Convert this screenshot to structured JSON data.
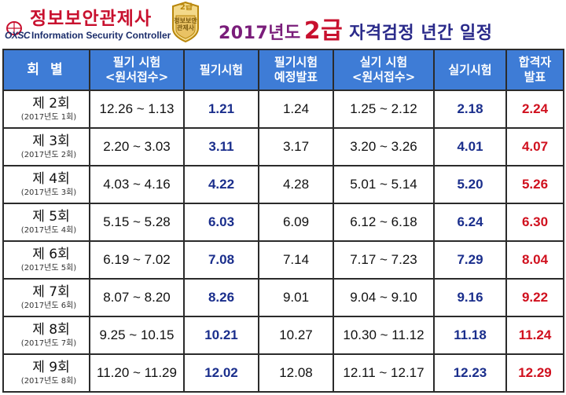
{
  "header": {
    "logo_title": "정보보안관제사",
    "logo_subtitle": "Information Security Controller",
    "logo_mark": "OXSC",
    "badge_grade": "2급",
    "badge_text": "정보보안관제사",
    "title_year": "2017년도",
    "title_grade": "2급",
    "title_rest": "자격검정 년간 일정"
  },
  "table": {
    "headers": {
      "round": "회 별",
      "written_apply_1": "필기 시험",
      "written_apply_2": "<원서접수>",
      "written_exam": "필기시험",
      "written_notice_1": "필기시험",
      "written_notice_2": "예정발표",
      "practical_apply_1": "실기 시험",
      "practical_apply_2": "<원서접수>",
      "practical_exam": "실기시험",
      "result_1": "합격자",
      "result_2": "발표"
    },
    "rows": [
      {
        "round": "제 2회",
        "round_sub": "(2017년도 1회)",
        "written_apply": "12.26 ~ 1.13",
        "written_exam": "1.21",
        "written_notice": "1.24",
        "practical_apply": "1.25 ~ 2.12",
        "practical_exam": "2.18",
        "result": "2.24"
      },
      {
        "round": "제 3회",
        "round_sub": "(2017년도 2회)",
        "written_apply": "2.20 ~ 3.03",
        "written_exam": "3.11",
        "written_notice": "3.17",
        "practical_apply": "3.20 ~ 3.26",
        "practical_exam": "4.01",
        "result": "4.07"
      },
      {
        "round": "제 4회",
        "round_sub": "(2017년도 3회)",
        "written_apply": "4.03 ~ 4.16",
        "written_exam": "4.22",
        "written_notice": "4.28",
        "practical_apply": "5.01 ~ 5.14",
        "practical_exam": "5.20",
        "result": "5.26"
      },
      {
        "round": "제 5회",
        "round_sub": "(2017년도 4회)",
        "written_apply": "5.15 ~ 5.28",
        "written_exam": "6.03",
        "written_notice": "6.09",
        "practical_apply": "6.12 ~ 6.18",
        "practical_exam": "6.24",
        "result": "6.30"
      },
      {
        "round": "제 6회",
        "round_sub": "(2017년도 5회)",
        "written_apply": "6.19 ~ 7.02",
        "written_exam": "7.08",
        "written_notice": "7.14",
        "practical_apply": "7.17 ~ 7.23",
        "practical_exam": "7.29",
        "result": "8.04"
      },
      {
        "round": "제 7회",
        "round_sub": "(2017년도 6회)",
        "written_apply": "8.07 ~ 8.20",
        "written_exam": "8.26",
        "written_notice": "9.01",
        "practical_apply": "9.04 ~ 9.10",
        "practical_exam": "9.16",
        "result": "9.22"
      },
      {
        "round": "제 8회",
        "round_sub": "(2017년도 7회)",
        "written_apply": "9.25 ~ 10.15",
        "written_exam": "10.21",
        "written_notice": "10.27",
        "practical_apply": "10.30 ~ 11.12",
        "practical_exam": "11.18",
        "result": "11.24"
      },
      {
        "round": "제 9회",
        "round_sub": "(2017년도 8회)",
        "written_apply": "11.20 ~ 11.29",
        "written_exam": "12.02",
        "written_notice": "12.08",
        "practical_apply": "12.11 ~ 12.17",
        "practical_exam": "12.23",
        "result": "12.29"
      }
    ]
  },
  "colors": {
    "header_bg": "#3e7cd6",
    "exam_date": "#1a2e8c",
    "result_date": "#d0101e",
    "logo_red": "#c8102e",
    "title_purple": "#7a1d7a"
  }
}
